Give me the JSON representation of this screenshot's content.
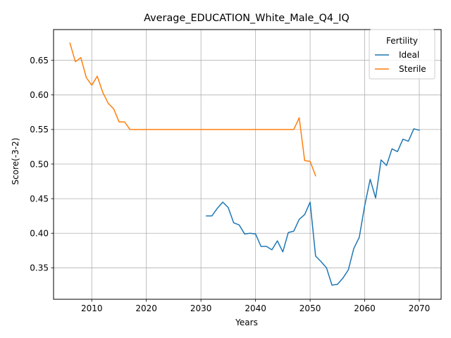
{
  "chart_data": {
    "type": "line",
    "title": "Average_EDUCATION_White_Male_Q4_IQ",
    "xlabel": "Years",
    "ylabel": "Score(-3-2)",
    "xlim": [
      2003,
      2074
    ],
    "ylim": [
      0.3045,
      0.6945
    ],
    "xticks": [
      2010,
      2020,
      2030,
      2040,
      2050,
      2060,
      2070
    ],
    "yticks": [
      0.35,
      0.4,
      0.45,
      0.5,
      0.55,
      0.6,
      0.65
    ],
    "xtick_labels": [
      "2010",
      "2020",
      "2030",
      "2040",
      "2050",
      "2060",
      "2070"
    ],
    "ytick_labels": [
      "0.35",
      "0.40",
      "0.45",
      "0.50",
      "0.55",
      "0.60",
      "0.65"
    ],
    "grid": true,
    "legend": {
      "title": "Fertility",
      "position": "top-right"
    },
    "series": [
      {
        "name": "Ideal",
        "color": "#1f77b4",
        "x": [
          2031,
          2032,
          2033,
          2034,
          2035,
          2036,
          2037,
          2038,
          2039,
          2040,
          2041,
          2042,
          2043,
          2044,
          2045,
          2046,
          2047,
          2048,
          2049,
          2050,
          2051,
          2052,
          2053,
          2054,
          2055,
          2056,
          2057,
          2058,
          2059,
          2060,
          2061,
          2062,
          2063,
          2064,
          2065,
          2066,
          2067,
          2068,
          2069,
          2070
        ],
        "y": [
          0.425,
          0.425,
          0.436,
          0.445,
          0.437,
          0.415,
          0.412,
          0.399,
          0.4,
          0.399,
          0.381,
          0.381,
          0.376,
          0.389,
          0.373,
          0.401,
          0.403,
          0.42,
          0.427,
          0.445,
          0.367,
          0.359,
          0.35,
          0.325,
          0.326,
          0.335,
          0.347,
          0.378,
          0.394,
          0.44,
          0.478,
          0.451,
          0.506,
          0.498,
          0.522,
          0.518,
          0.536,
          0.533,
          0.551,
          0.549
        ]
      },
      {
        "name": "Sterile",
        "color": "#ff7f0e",
        "x": [
          2006,
          2007,
          2008,
          2009,
          2010,
          2011,
          2012,
          2013,
          2014,
          2015,
          2016,
          2017,
          2018,
          2019,
          2020,
          2021,
          2022,
          2023,
          2024,
          2025,
          2026,
          2027,
          2028,
          2029,
          2030,
          2031,
          2032,
          2033,
          2034,
          2035,
          2036,
          2037,
          2038,
          2039,
          2040,
          2041,
          2042,
          2043,
          2044,
          2045,
          2046,
          2047,
          2048,
          2049,
          2050,
          2051
        ],
        "y": [
          0.675,
          0.648,
          0.654,
          0.625,
          0.614,
          0.627,
          0.604,
          0.588,
          0.58,
          0.561,
          0.561,
          0.55,
          0.55,
          0.55,
          0.55,
          0.55,
          0.55,
          0.55,
          0.55,
          0.55,
          0.55,
          0.55,
          0.55,
          0.55,
          0.55,
          0.55,
          0.55,
          0.55,
          0.55,
          0.55,
          0.55,
          0.55,
          0.55,
          0.55,
          0.55,
          0.55,
          0.55,
          0.55,
          0.55,
          0.55,
          0.55,
          0.55,
          0.567,
          0.505,
          0.504,
          0.483
        ]
      }
    ]
  }
}
